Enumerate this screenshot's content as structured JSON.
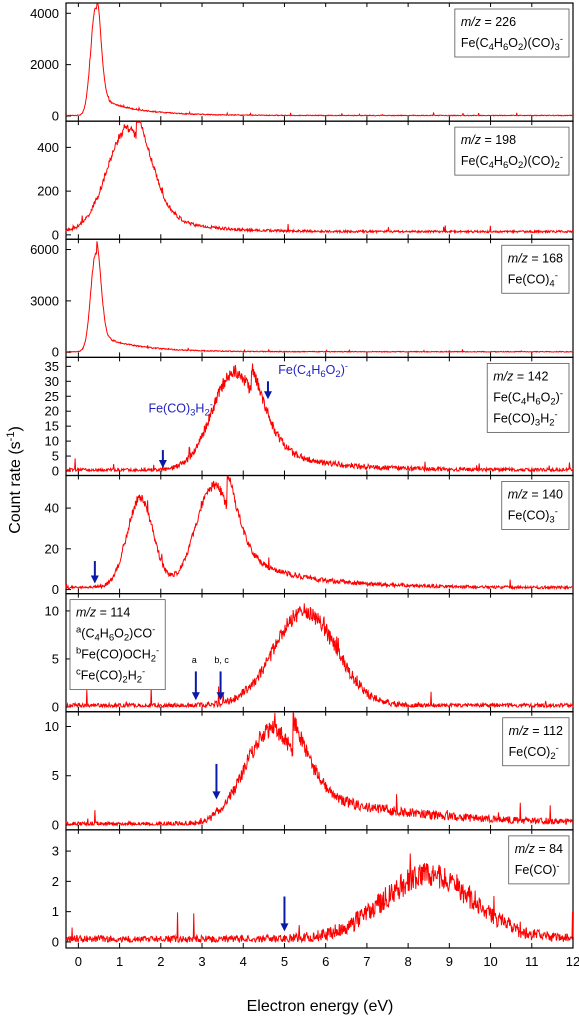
{
  "figure": {
    "xlabel": "Electron energy (eV)",
    "ylabel": "Count rate (s",
    "ylabel_sup": "-1",
    "ylabel_close": ")"
  },
  "chart_data": [
    {
      "type": "line",
      "title": "",
      "xlim": [
        -0.3,
        12
      ],
      "ylim": [
        -200,
        4400
      ],
      "yticks": [
        0,
        2000,
        4000
      ],
      "legend_lines": [
        {
          "parts": [
            {
              "t": "m/z",
              "italic": true
            },
            {
              "t": " = 226"
            }
          ]
        },
        {
          "parts": [
            {
              "t": "Fe(C"
            },
            {
              "t": "4",
              "sub": true
            },
            {
              "t": "H"
            },
            {
              "t": "6",
              "sub": true
            },
            {
              "t": "O"
            },
            {
              "t": "2",
              "sub": true
            },
            {
              "t": ")(CO)"
            },
            {
              "t": "3",
              "sub": true
            },
            {
              "t": "-",
              "sup": true
            }
          ]
        }
      ],
      "legend_position": "top-right",
      "peaks": [
        {
          "x": 0.42,
          "y": 4200,
          "w": 0.12
        }
      ],
      "tail": {
        "amplitude": 700,
        "decay": 0.9,
        "start": 0.45
      },
      "baseline": 20,
      "noise": 60,
      "arrows": [],
      "annotations": []
    },
    {
      "type": "line",
      "title": "",
      "xlim": [
        -0.3,
        12
      ],
      "ylim": [
        -20,
        520
      ],
      "yticks": [
        0,
        200,
        400
      ],
      "legend_lines": [
        {
          "parts": [
            {
              "t": "m/z",
              "italic": true
            },
            {
              "t": " = 198"
            }
          ]
        },
        {
          "parts": [
            {
              "t": "Fe(C"
            },
            {
              "t": "4",
              "sub": true
            },
            {
              "t": "H"
            },
            {
              "t": "6",
              "sub": true
            },
            {
              "t": "O"
            },
            {
              "t": "2",
              "sub": true
            },
            {
              "t": ")(CO)"
            },
            {
              "t": "2",
              "sub": true
            },
            {
              "t": "-",
              "sup": true
            }
          ]
        }
      ],
      "legend_position": "top-right",
      "peaks": [
        {
          "x": 1.2,
          "y": 470,
          "w": 0.5
        }
      ],
      "tail": {
        "amplitude": 120,
        "decay": 1.0,
        "start": 1.4
      },
      "baseline": 15,
      "noise": 18,
      "arrows": [],
      "annotations": []
    },
    {
      "type": "line",
      "title": "",
      "xlim": [
        -0.3,
        12
      ],
      "ylim": [
        -300,
        6600
      ],
      "yticks": [
        0,
        3000,
        6000
      ],
      "legend_lines": [
        {
          "parts": [
            {
              "t": "m/z",
              "italic": true
            },
            {
              "t": " = 168"
            }
          ]
        },
        {
          "parts": [
            {
              "t": "Fe(CO)"
            },
            {
              "t": "4",
              "sub": true
            },
            {
              "t": "-",
              "sup": true
            }
          ]
        }
      ],
      "legend_position": "top-right",
      "peaks": [
        {
          "x": 0.42,
          "y": 5700,
          "w": 0.12
        }
      ],
      "tail": {
        "amplitude": 1000,
        "decay": 0.9,
        "start": 0.45
      },
      "baseline": 30,
      "noise": 90,
      "arrows": [],
      "annotations": []
    },
    {
      "type": "line",
      "title": "",
      "xlim": [
        -0.3,
        12
      ],
      "ylim": [
        -1.5,
        38
      ],
      "yticks": [
        0,
        5,
        10,
        15,
        20,
        25,
        30,
        35
      ],
      "legend_lines": [
        {
          "parts": [
            {
              "t": "m/z",
              "italic": true
            },
            {
              "t": " = 142"
            }
          ]
        },
        {
          "parts": [
            {
              "t": "Fe(C"
            },
            {
              "t": "4",
              "sub": true
            },
            {
              "t": "H"
            },
            {
              "t": "6",
              "sub": true
            },
            {
              "t": "O"
            },
            {
              "t": "2",
              "sub": true
            },
            {
              "t": ")"
            },
            {
              "t": "-",
              "sup": true
            }
          ]
        },
        {
          "parts": [
            {
              "t": "Fe(CO)"
            },
            {
              "t": "3",
              "sub": true
            },
            {
              "t": "H"
            },
            {
              "t": "2",
              "sub": true
            },
            {
              "t": "-",
              "sup": true
            }
          ]
        }
      ],
      "legend_position": "top-right",
      "peaks": [
        {
          "x": 3.8,
          "y": 33,
          "w": 0.55
        }
      ],
      "tail": {
        "amplitude": 10,
        "decay": 1.3,
        "start": 4.2
      },
      "baseline": 0.3,
      "noise": 2.2,
      "arrows": [
        {
          "x": 2.05,
          "y_tail": 7,
          "y_head": 1
        },
        {
          "x": 4.6,
          "y_tail": 30,
          "y_head": 24
        }
      ],
      "annotations": [
        {
          "x": 1.7,
          "y": 19.5,
          "parts": [
            {
              "t": "Fe(CO)"
            },
            {
              "t": "3",
              "sub": true
            },
            {
              "t": "H"
            },
            {
              "t": "2",
              "sub": true
            },
            {
              "t": "-",
              "sup": true
            }
          ]
        },
        {
          "x": 4.85,
          "y": 32.5,
          "parts": [
            {
              "t": "Fe(C"
            },
            {
              "t": "4",
              "sub": true
            },
            {
              "t": "H"
            },
            {
              "t": "6",
              "sub": true
            },
            {
              "t": "O"
            },
            {
              "t": "2",
              "sub": true
            },
            {
              "t": ")"
            },
            {
              "t": "-",
              "sup": true
            }
          ]
        }
      ]
    },
    {
      "type": "line",
      "title": "",
      "xlim": [
        -0.3,
        12
      ],
      "ylim": [
        -2,
        56
      ],
      "yticks": [
        0,
        20,
        40
      ],
      "legend_lines": [
        {
          "parts": [
            {
              "t": "m/z",
              "italic": true
            },
            {
              "t": " = 140"
            }
          ]
        },
        {
          "parts": [
            {
              "t": "Fe(CO)"
            },
            {
              "t": "3",
              "sub": true
            },
            {
              "t": "-",
              "sup": true
            }
          ]
        }
      ],
      "legend_position": "top-right",
      "peaks": [
        {
          "x": 1.5,
          "y": 44,
          "w": 0.32
        },
        {
          "x": 3.3,
          "y": 50,
          "w": 0.45
        }
      ],
      "tail": {
        "amplitude": 18,
        "decay": 1.5,
        "start": 3.6
      },
      "baseline": 1,
      "noise": 2.5,
      "arrows": [
        {
          "x": 0.4,
          "y_tail": 14,
          "y_head": 3
        }
      ],
      "annotations": []
    },
    {
      "type": "line",
      "title": "",
      "xlim": [
        -0.3,
        12
      ],
      "ylim": [
        -0.5,
        11.8
      ],
      "yticks": [
        0,
        5,
        10
      ],
      "legend_lines": [
        {
          "parts": [
            {
              "t": "m/z",
              "italic": true
            },
            {
              "t": " = 114"
            }
          ]
        },
        {
          "parts": [
            {
              "t": "a",
              "sup": true
            },
            {
              "t": "(C"
            },
            {
              "t": "4",
              "sub": true
            },
            {
              "t": "H"
            },
            {
              "t": "6",
              "sub": true
            },
            {
              "t": "O"
            },
            {
              "t": "2",
              "sub": true
            },
            {
              "t": ")CO"
            },
            {
              "t": "-",
              "sup": true
            }
          ]
        },
        {
          "parts": [
            {
              "t": "b",
              "sup": true
            },
            {
              "t": "Fe(CO)OCH"
            },
            {
              "t": "2",
              "sub": true
            },
            {
              "t": "-",
              "sup": true
            }
          ]
        },
        {
          "parts": [
            {
              "t": "c",
              "sup": true
            },
            {
              "t": "Fe(CO)"
            },
            {
              "t": "2",
              "sub": true
            },
            {
              "t": "H"
            },
            {
              "t": "2",
              "sub": true
            },
            {
              "t": "-",
              "sup": true
            }
          ]
        }
      ],
      "legend_position": "top-left",
      "peaks": [
        {
          "x": 5.5,
          "y": 9.8,
          "w": 0.75
        }
      ],
      "tail": {
        "amplitude": 0,
        "decay": 1,
        "start": 6
      },
      "baseline": 0.15,
      "noise": 0.9,
      "arrows": [
        {
          "x": 2.85,
          "y_tail": 3.7,
          "y_head": 0.7
        },
        {
          "x": 3.45,
          "y_tail": 3.7,
          "y_head": 0.7
        }
      ],
      "annotations": [
        {
          "x": 2.75,
          "y": 4.6,
          "small": true,
          "parts": [
            {
              "t": "a"
            }
          ]
        },
        {
          "x": 3.3,
          "y": 4.6,
          "small": true,
          "parts": [
            {
              "t": "b, c"
            }
          ]
        }
      ]
    },
    {
      "type": "line",
      "title": "",
      "xlim": [
        -0.3,
        12
      ],
      "ylim": [
        -0.5,
        11.5
      ],
      "yticks": [
        0,
        5,
        10
      ],
      "legend_lines": [
        {
          "parts": [
            {
              "t": "m/z",
              "italic": true
            },
            {
              "t": " = 112"
            }
          ]
        },
        {
          "parts": [
            {
              "t": "Fe(CO)"
            },
            {
              "t": "2",
              "sub": true
            },
            {
              "t": "-",
              "sup": true
            }
          ]
        }
      ],
      "legend_position": "top-right",
      "peaks": [
        {
          "x": 4.7,
          "y": 9.6,
          "w": 0.65
        }
      ],
      "tail": {
        "amplitude": 3.5,
        "decay": 2.5,
        "start": 5.2
      },
      "baseline": 0.1,
      "noise": 0.9,
      "arrows": [
        {
          "x": 3.35,
          "y_tail": 6.2,
          "y_head": 2.6
        }
      ],
      "annotations": []
    },
    {
      "type": "line",
      "title": "",
      "xlim": [
        -0.3,
        12
      ],
      "ylim": [
        -0.2,
        3.7
      ],
      "yticks": [
        0,
        1,
        2,
        3
      ],
      "legend_lines": [
        {
          "parts": [
            {
              "t": "m/z",
              "italic": true
            },
            {
              "t": " = 84"
            }
          ]
        },
        {
          "parts": [
            {
              "t": "Fe(CO)"
            },
            {
              "t": "-",
              "sup": true
            }
          ]
        }
      ],
      "legend_position": "top-right",
      "peaks": [
        {
          "x": 8.5,
          "y": 2.1,
          "w": 1.1
        }
      ],
      "tail": {
        "amplitude": 0,
        "decay": 1,
        "start": 9
      },
      "baseline": 0.1,
      "noise": 0.45,
      "arrows": [
        {
          "x": 5.0,
          "y_tail": 1.5,
          "y_head": 0.35
        }
      ],
      "annotations": []
    }
  ],
  "xticks": [
    0,
    1,
    2,
    3,
    4,
    5,
    6,
    7,
    8,
    9,
    10,
    11,
    12
  ],
  "colors": {
    "curve": "#ff0000",
    "arrow": "#0a1aa6",
    "annotation": "#1f1fbf",
    "axis": "#000000"
  }
}
